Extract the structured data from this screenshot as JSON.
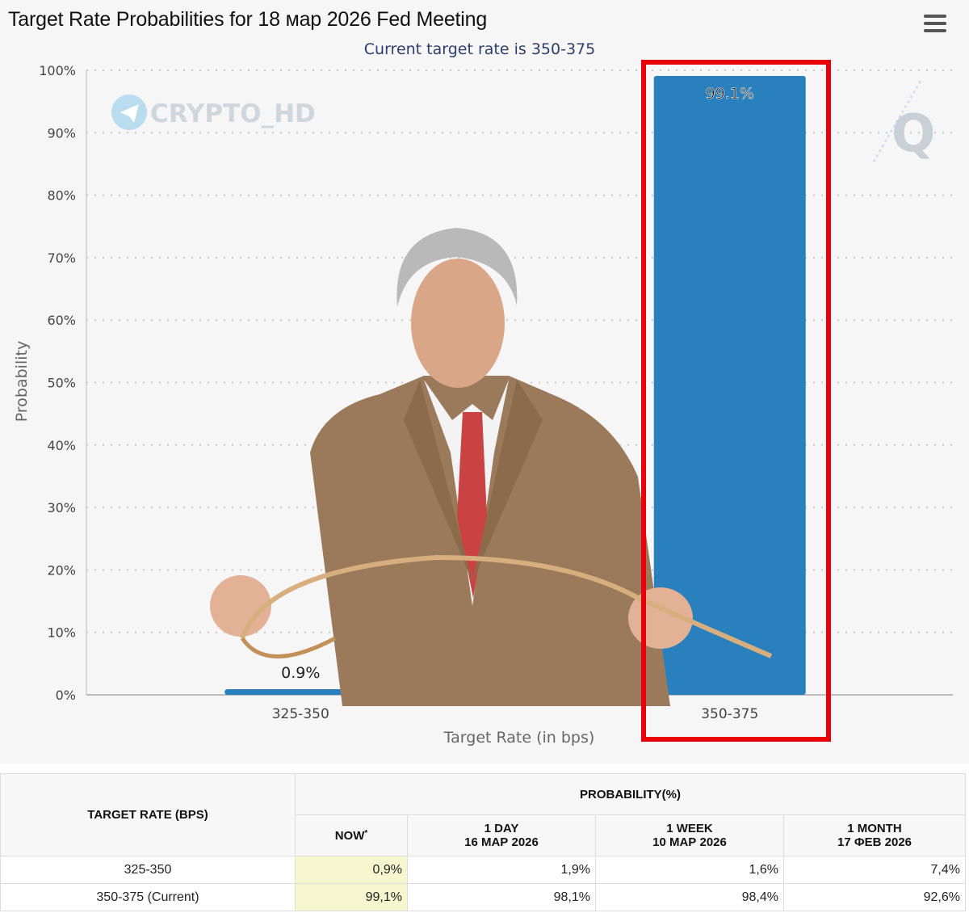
{
  "chart_title": "Target Rate Probabilities for 18 мар 2026 Fed Meeting",
  "chart_subtitle": "Current target rate is 350-375",
  "menu_icon": "hamburger-menu-icon",
  "watermark_left": "CRYPTO_HD",
  "watermark_right": "Q",
  "chart_data": {
    "type": "bar",
    "title": "Target Rate Probabilities for 18 мар 2026 Fed Meeting",
    "subtitle": "Current target rate is 350-375",
    "xlabel": "Target Rate (in bps)",
    "ylabel": "Probability",
    "categories": [
      "325-350",
      "350-375"
    ],
    "values": [
      0.9,
      99.1
    ],
    "data_labels": [
      "0.9%",
      "99.1%"
    ],
    "ylim": [
      0,
      100
    ],
    "yticks": [
      "0%",
      "10%",
      "20%",
      "30%",
      "40%",
      "50%",
      "60%",
      "70%",
      "80%",
      "90%",
      "100%"
    ],
    "grid": true,
    "highlighted_category": "350-375",
    "bar_color": "#2a80bd",
    "highlight_box_color": "#e8000b"
  },
  "table": {
    "target_rate_header": "TARGET RATE (BPS)",
    "probability_header": "PROBABILITY(%)",
    "columns": [
      {
        "line1": "NOW",
        "sup": "*",
        "line2": ""
      },
      {
        "line1": "1 DAY",
        "line2": "16 МАР 2026"
      },
      {
        "line1": "1 WEEK",
        "line2": "10 МАР 2026"
      },
      {
        "line1": "1 MONTH",
        "line2": "17 ФЕВ 2026"
      }
    ],
    "rows": [
      {
        "rate": "325-350",
        "values": [
          "0,9%",
          "1,9%",
          "1,6%",
          "7,4%"
        ]
      },
      {
        "rate": "350-375 (Current)",
        "values": [
          "99,1%",
          "98,1%",
          "98,4%",
          "92,6%"
        ]
      }
    ]
  }
}
